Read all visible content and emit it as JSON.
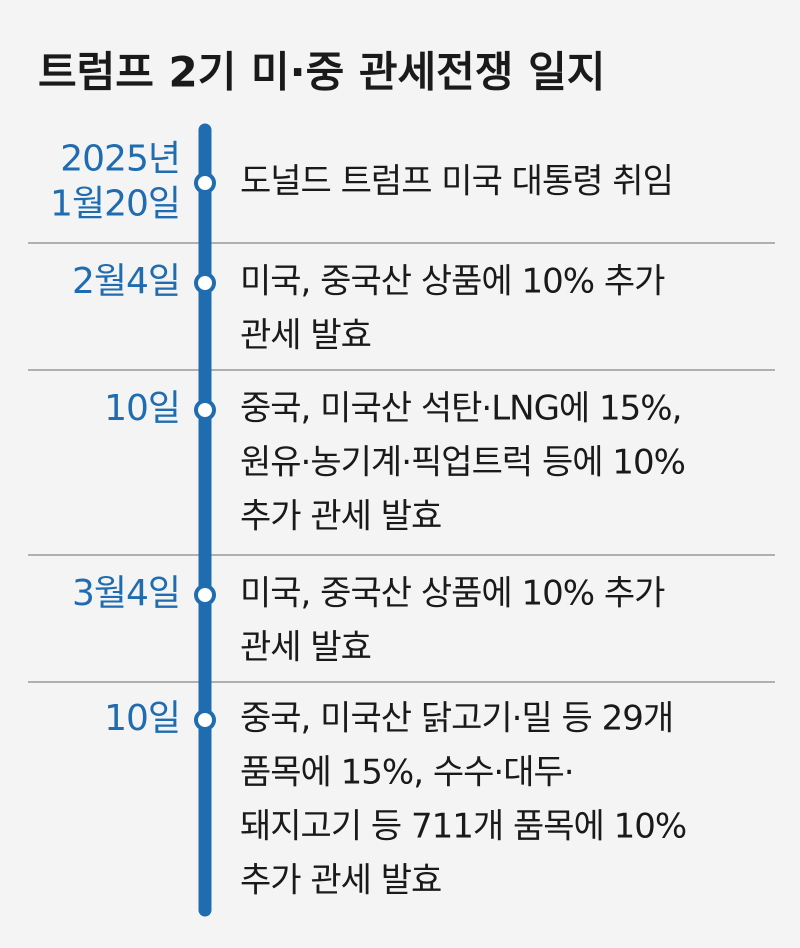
{
  "header": {
    "title": "트럼프 2기 미·중 관세전쟁 일지"
  },
  "events": [
    {
      "date": [
        "2025년",
        "1월20일"
      ],
      "text": [
        "도널드 트럼프 미국 대통령 취임"
      ]
    },
    {
      "date": [
        "2월4일"
      ],
      "text": [
        "미국, 중국산 상품에 10% 추가",
        "관세 발효"
      ]
    },
    {
      "date": [
        "10일"
      ],
      "text": [
        "중국, 미국산 석탄·LNG에 15%,",
        "원유·농기계·픽업트럭 등에 10%",
        "추가 관세 발효"
      ]
    },
    {
      "date": [
        "3월4일"
      ],
      "text": [
        "미국, 중국산 상품에 10% 추가",
        "관세 발효"
      ]
    },
    {
      "date": [
        "10일"
      ],
      "text": [
        "중국, 미국산 닭고기·밀 등 29개",
        "품목에 15%, 수수·대두·",
        "돼지고기 등 711개 품목에 10%",
        "추가 관세 발효"
      ]
    }
  ]
}
